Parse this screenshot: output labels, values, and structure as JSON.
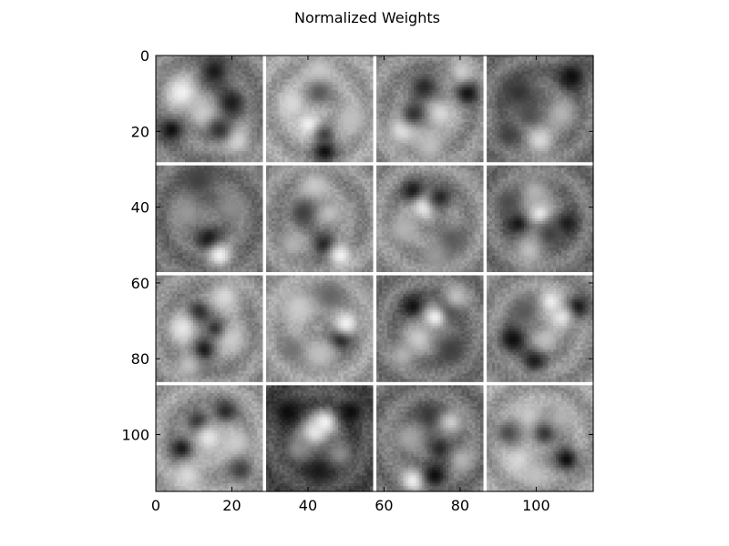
{
  "chart_data": {
    "type": "heatmap",
    "title": "Normalized Weights",
    "colormap": "gray",
    "grid": false,
    "xlabel": "",
    "ylabel": "",
    "xlim": [
      0,
      115
    ],
    "ylim": [
      115,
      0
    ],
    "xticks": [
      0,
      20,
      40,
      60,
      80,
      100
    ],
    "yticks": [
      0,
      20,
      40,
      60,
      80,
      100
    ],
    "tile_rows": 4,
    "tile_cols": 4,
    "tile_size": 28,
    "tile_spacing": 1,
    "separator_color": "#ffffff",
    "axes_color": "#000000",
    "tiles": [
      {
        "row": 0,
        "col": 0,
        "base": 0.5,
        "blobs": [
          [
            0.25,
            0.35,
            0.12,
            0.95
          ],
          [
            0.55,
            0.15,
            0.1,
            0.1
          ],
          [
            0.7,
            0.45,
            0.1,
            0.1
          ],
          [
            0.15,
            0.7,
            0.08,
            0.05
          ],
          [
            0.45,
            0.55,
            0.1,
            0.8
          ],
          [
            0.75,
            0.8,
            0.1,
            0.85
          ],
          [
            0.6,
            0.7,
            0.08,
            0.2
          ]
        ]
      },
      {
        "row": 0,
        "col": 1,
        "base": 0.62,
        "blobs": [
          [
            0.5,
            0.15,
            0.1,
            0.8
          ],
          [
            0.25,
            0.45,
            0.1,
            0.85
          ],
          [
            0.4,
            0.65,
            0.08,
            0.95
          ],
          [
            0.55,
            0.9,
            0.08,
            0.05
          ],
          [
            0.5,
            0.35,
            0.08,
            0.35
          ],
          [
            0.8,
            0.6,
            0.1,
            0.75
          ],
          [
            0.55,
            0.75,
            0.06,
            0.25
          ]
        ]
      },
      {
        "row": 0,
        "col": 2,
        "base": 0.55,
        "blobs": [
          [
            0.85,
            0.35,
            0.08,
            0.05
          ],
          [
            0.45,
            0.3,
            0.1,
            0.15
          ],
          [
            0.25,
            0.7,
            0.1,
            0.9
          ],
          [
            0.6,
            0.55,
            0.1,
            0.85
          ],
          [
            0.35,
            0.55,
            0.08,
            0.2
          ],
          [
            0.8,
            0.15,
            0.08,
            0.8
          ],
          [
            0.5,
            0.85,
            0.1,
            0.75
          ]
        ]
      },
      {
        "row": 0,
        "col": 3,
        "base": 0.45,
        "blobs": [
          [
            0.8,
            0.2,
            0.1,
            0.05
          ],
          [
            0.3,
            0.35,
            0.12,
            0.2
          ],
          [
            0.5,
            0.8,
            0.1,
            0.85
          ],
          [
            0.4,
            0.55,
            0.08,
            0.3
          ],
          [
            0.7,
            0.55,
            0.1,
            0.7
          ],
          [
            0.2,
            0.75,
            0.08,
            0.25
          ]
        ]
      },
      {
        "row": 1,
        "col": 0,
        "base": 0.45,
        "blobs": [
          [
            0.5,
            0.7,
            0.08,
            0.05
          ],
          [
            0.6,
            0.85,
            0.08,
            0.95
          ],
          [
            0.4,
            0.15,
            0.12,
            0.25
          ],
          [
            0.3,
            0.45,
            0.1,
            0.6
          ],
          [
            0.7,
            0.4,
            0.1,
            0.55
          ]
        ]
      },
      {
        "row": 1,
        "col": 1,
        "base": 0.55,
        "blobs": [
          [
            0.55,
            0.75,
            0.08,
            0.1
          ],
          [
            0.7,
            0.85,
            0.08,
            0.95
          ],
          [
            0.45,
            0.2,
            0.1,
            0.8
          ],
          [
            0.35,
            0.45,
            0.1,
            0.25
          ],
          [
            0.6,
            0.45,
            0.08,
            0.75
          ],
          [
            0.25,
            0.75,
            0.08,
            0.7
          ]
        ]
      },
      {
        "row": 1,
        "col": 2,
        "base": 0.55,
        "blobs": [
          [
            0.35,
            0.25,
            0.08,
            0.05
          ],
          [
            0.45,
            0.4,
            0.08,
            0.95
          ],
          [
            0.6,
            0.3,
            0.08,
            0.15
          ],
          [
            0.25,
            0.6,
            0.1,
            0.7
          ],
          [
            0.7,
            0.7,
            0.1,
            0.35
          ],
          [
            0.55,
            0.85,
            0.08,
            0.6
          ]
        ]
      },
      {
        "row": 1,
        "col": 3,
        "base": 0.45,
        "blobs": [
          [
            0.3,
            0.55,
            0.08,
            0.05
          ],
          [
            0.5,
            0.45,
            0.08,
            0.95
          ],
          [
            0.75,
            0.55,
            0.08,
            0.1
          ],
          [
            0.45,
            0.25,
            0.1,
            0.7
          ],
          [
            0.4,
            0.8,
            0.1,
            0.75
          ],
          [
            0.6,
            0.65,
            0.08,
            0.25
          ],
          [
            0.2,
            0.35,
            0.08,
            0.3
          ]
        ]
      },
      {
        "row": 2,
        "col": 0,
        "base": 0.55,
        "blobs": [
          [
            0.4,
            0.35,
            0.08,
            0.1
          ],
          [
            0.45,
            0.7,
            0.08,
            0.05
          ],
          [
            0.25,
            0.5,
            0.1,
            0.9
          ],
          [
            0.65,
            0.2,
            0.1,
            0.85
          ],
          [
            0.7,
            0.6,
            0.1,
            0.8
          ],
          [
            0.55,
            0.5,
            0.06,
            0.2
          ],
          [
            0.3,
            0.85,
            0.08,
            0.75
          ]
        ]
      },
      {
        "row": 2,
        "col": 1,
        "base": 0.6,
        "blobs": [
          [
            0.7,
            0.6,
            0.08,
            0.05
          ],
          [
            0.75,
            0.45,
            0.08,
            0.95
          ],
          [
            0.3,
            0.3,
            0.12,
            0.8
          ],
          [
            0.5,
            0.75,
            0.1,
            0.75
          ],
          [
            0.6,
            0.2,
            0.1,
            0.4
          ],
          [
            0.25,
            0.7,
            0.08,
            0.45
          ]
        ]
      },
      {
        "row": 2,
        "col": 2,
        "base": 0.45,
        "blobs": [
          [
            0.35,
            0.3,
            0.08,
            0.05
          ],
          [
            0.65,
            0.35,
            0.08,
            0.1
          ],
          [
            0.55,
            0.4,
            0.08,
            0.95
          ],
          [
            0.4,
            0.6,
            0.1,
            0.8
          ],
          [
            0.7,
            0.7,
            0.1,
            0.25
          ],
          [
            0.25,
            0.75,
            0.08,
            0.7
          ],
          [
            0.75,
            0.2,
            0.08,
            0.75
          ]
        ]
      },
      {
        "row": 2,
        "col": 3,
        "base": 0.55,
        "blobs": [
          [
            0.25,
            0.6,
            0.1,
            0.05
          ],
          [
            0.85,
            0.3,
            0.08,
            0.05
          ],
          [
            0.6,
            0.25,
            0.08,
            0.95
          ],
          [
            0.7,
            0.4,
            0.08,
            0.9
          ],
          [
            0.45,
            0.8,
            0.08,
            0.1
          ],
          [
            0.55,
            0.6,
            0.08,
            0.75
          ],
          [
            0.35,
            0.35,
            0.1,
            0.35
          ]
        ]
      },
      {
        "row": 3,
        "col": 0,
        "base": 0.6,
        "blobs": [
          [
            0.25,
            0.6,
            0.08,
            0.05
          ],
          [
            0.4,
            0.35,
            0.08,
            0.1
          ],
          [
            0.65,
            0.25,
            0.08,
            0.15
          ],
          [
            0.5,
            0.5,
            0.1,
            0.9
          ],
          [
            0.3,
            0.85,
            0.1,
            0.85
          ],
          [
            0.75,
            0.55,
            0.1,
            0.8
          ],
          [
            0.8,
            0.8,
            0.08,
            0.25
          ]
        ]
      },
      {
        "row": 3,
        "col": 1,
        "base": 0.3,
        "blobs": [
          [
            0.45,
            0.45,
            0.1,
            0.9
          ],
          [
            0.55,
            0.35,
            0.08,
            0.95
          ],
          [
            0.2,
            0.25,
            0.1,
            0.05
          ],
          [
            0.8,
            0.25,
            0.08,
            0.05
          ],
          [
            0.5,
            0.8,
            0.1,
            0.1
          ],
          [
            0.3,
            0.6,
            0.08,
            0.55
          ],
          [
            0.7,
            0.65,
            0.08,
            0.55
          ]
        ]
      },
      {
        "row": 3,
        "col": 2,
        "base": 0.45,
        "blobs": [
          [
            0.35,
            0.9,
            0.08,
            0.95
          ],
          [
            0.55,
            0.85,
            0.08,
            0.05
          ],
          [
            0.5,
            0.3,
            0.1,
            0.2
          ],
          [
            0.7,
            0.35,
            0.08,
            0.8
          ],
          [
            0.3,
            0.5,
            0.1,
            0.65
          ],
          [
            0.6,
            0.6,
            0.08,
            0.15
          ],
          [
            0.8,
            0.7,
            0.08,
            0.7
          ]
        ]
      },
      {
        "row": 3,
        "col": 3,
        "base": 0.62,
        "blobs": [
          [
            0.75,
            0.7,
            0.08,
            0.05
          ],
          [
            0.4,
            0.3,
            0.1,
            0.8
          ],
          [
            0.3,
            0.7,
            0.1,
            0.85
          ],
          [
            0.55,
            0.45,
            0.08,
            0.2
          ],
          [
            0.7,
            0.3,
            0.08,
            0.7
          ],
          [
            0.45,
            0.85,
            0.08,
            0.75
          ],
          [
            0.2,
            0.45,
            0.08,
            0.3
          ]
        ]
      }
    ]
  }
}
